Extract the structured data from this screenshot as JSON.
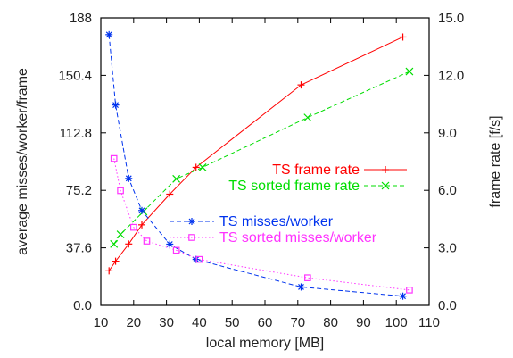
{
  "chart_data": {
    "type": "line",
    "xlabel": "local memory [MB]",
    "ylabel_left": "average misses/worker/frame",
    "ylabel_right": "frame rate [f/s]",
    "xlim": [
      10,
      110
    ],
    "ylim_left": [
      0,
      188
    ],
    "ylim_right": [
      0,
      15
    ],
    "xticks": [
      10,
      20,
      30,
      40,
      50,
      60,
      70,
      80,
      90,
      100,
      110
    ],
    "yticks_left": [
      "0.0",
      "37.6",
      "75.2",
      "112.8",
      "150.4",
      "188"
    ],
    "yticks_right": [
      "0.0",
      "3.0",
      "6.0",
      "9.0",
      "12.0",
      "15.0"
    ],
    "grid": false,
    "legend_placement": "right",
    "series": [
      {
        "name": "TS frame rate",
        "axis": "right",
        "color": "#ff0000",
        "marker": "plus",
        "dash": "solid",
        "x": [
          12.5,
          14.5,
          18.5,
          22.5,
          31,
          39,
          71,
          102
        ],
        "y": [
          1.8,
          2.3,
          3.2,
          4.2,
          5.8,
          7.2,
          11.5,
          14.0
        ]
      },
      {
        "name": "TS sorted frame rate",
        "axis": "right",
        "color": "#00dd00",
        "marker": "x",
        "dash": "dashed",
        "x": [
          14,
          16,
          23,
          33,
          41,
          73,
          104
        ],
        "y": [
          3.2,
          3.7,
          4.9,
          6.6,
          7.2,
          9.8,
          12.2
        ]
      },
      {
        "name": "TS misses/worker",
        "axis": "left",
        "color": "#0033ee",
        "marker": "star",
        "dash": "dashed",
        "x": [
          12.5,
          14.5,
          18.5,
          22.5,
          31,
          39,
          71,
          102
        ],
        "y": [
          177,
          131,
          83,
          62,
          40,
          30,
          12,
          6
        ]
      },
      {
        "name": "TS sorted misses/worker",
        "axis": "left",
        "color": "#ff33ff",
        "marker": "square",
        "dash": "dotted",
        "x": [
          14,
          16,
          20,
          24,
          33,
          40,
          73,
          104
        ],
        "y": [
          96,
          75,
          51,
          42,
          36,
          30,
          18,
          10
        ]
      }
    ]
  }
}
